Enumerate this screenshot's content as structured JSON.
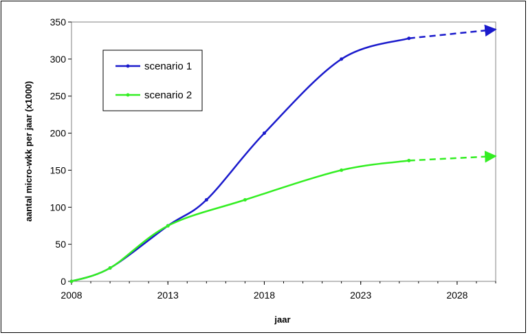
{
  "chart_data": {
    "type": "line",
    "title": "",
    "xlabel": "jaar",
    "ylabel": "aantal micro-wkk per jaar (x1000)",
    "xlim": [
      2008,
      2030
    ],
    "ylim": [
      0,
      350
    ],
    "x_ticks": [
      "2008",
      "2013",
      "2018",
      "2023",
      "2028"
    ],
    "y_ticks": [
      "0",
      "50",
      "100",
      "150",
      "200",
      "250",
      "300",
      "350"
    ],
    "grid": false,
    "legend_position": "top-left",
    "series": [
      {
        "name": "scenario 1",
        "color": "#1a1acc",
        "x": [
          2008,
          2010,
          2013,
          2015,
          2018,
          2022,
          2025.5
        ],
        "values": [
          0,
          18,
          75,
          110,
          200,
          300,
          328
        ],
        "projection": {
          "x": [
            2025.5,
            2030
          ],
          "values": [
            328,
            340
          ]
        }
      },
      {
        "name": "scenario 2",
        "color": "#33ee22",
        "x": [
          2008,
          2010,
          2013,
          2017,
          2022,
          2025.5
        ],
        "values": [
          0,
          18,
          75,
          110,
          150,
          163
        ],
        "projection": {
          "x": [
            2025.5,
            2030
          ],
          "values": [
            163,
            169
          ]
        }
      }
    ]
  }
}
